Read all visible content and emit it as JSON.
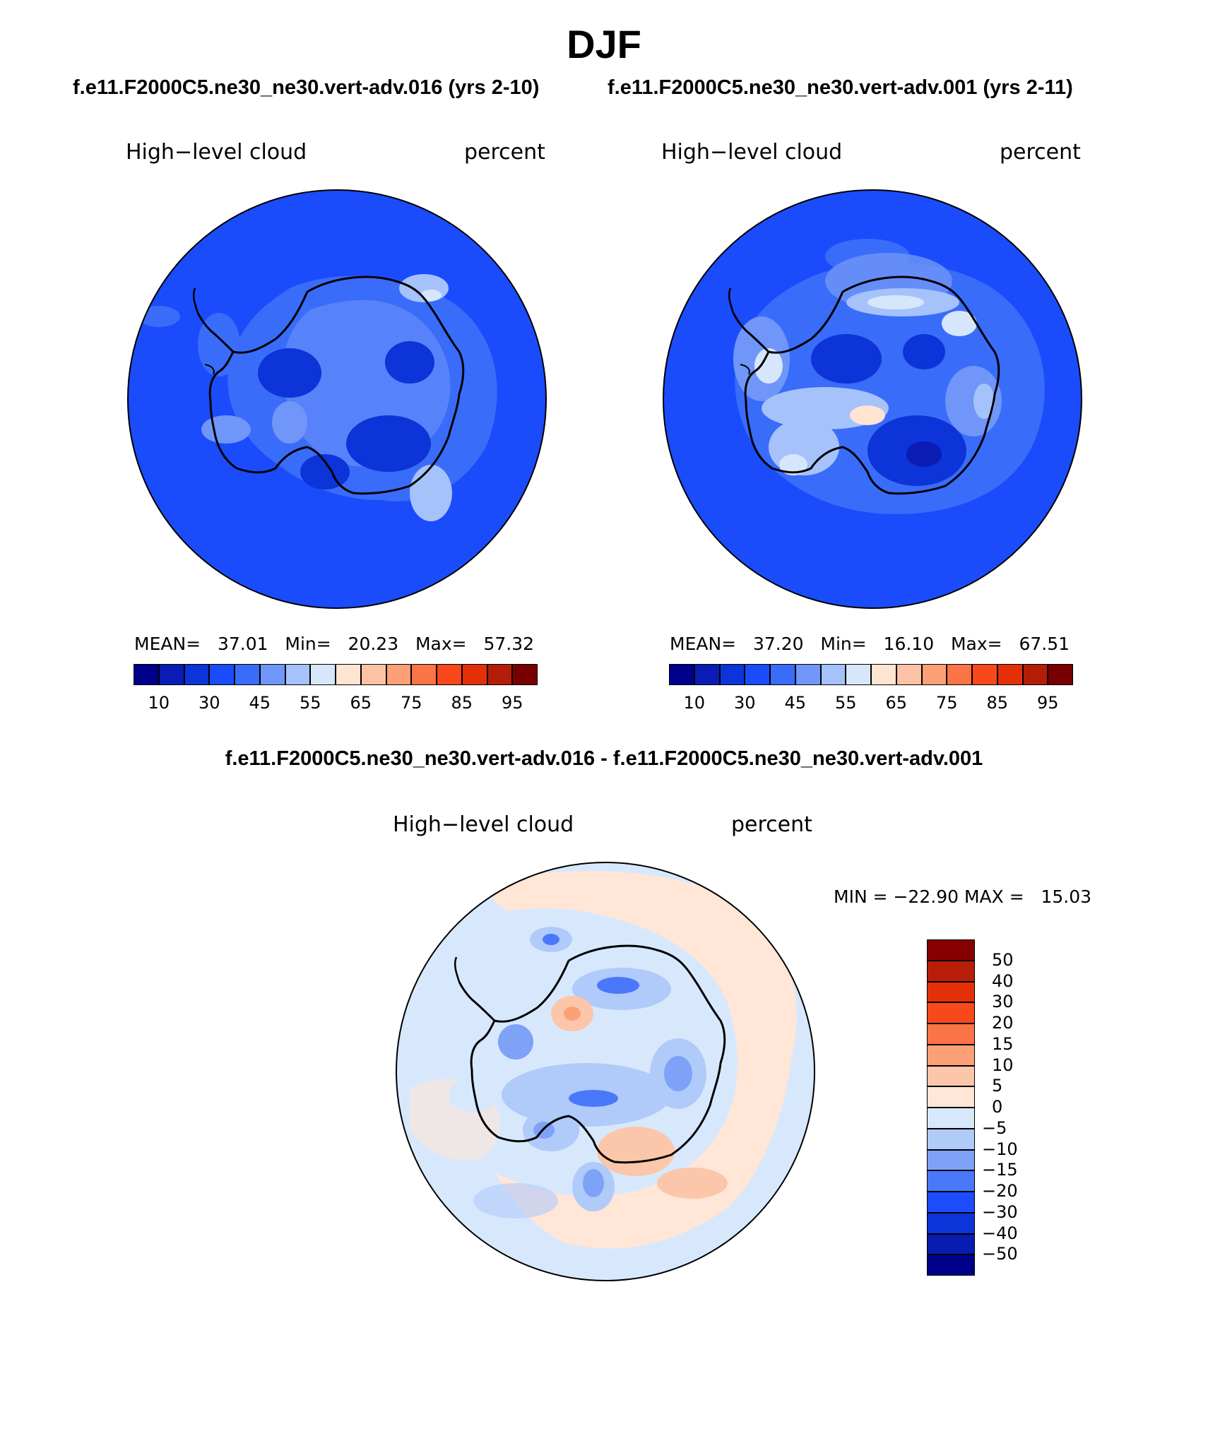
{
  "title": "DJF",
  "panels": [
    {
      "case": "f.e11.F2000C5.ne30_ne30.vert-adv.016 (yrs 2-10)",
      "variable": "High−level cloud",
      "units": "percent",
      "stats": {
        "mean_label": "MEAN=",
        "mean": "37.01",
        "min_label": "Min=",
        "min": "20.23",
        "max_label": "Max=",
        "max": "57.32"
      }
    },
    {
      "case": "f.e11.F2000C5.ne30_ne30.vert-adv.001 (yrs 2-11)",
      "variable": "High−level cloud",
      "units": "percent",
      "stats": {
        "mean_label": "MEAN=",
        "mean": "37.20",
        "min_label": "Min=",
        "min": "16.10",
        "max_label": "Max=",
        "max": "67.51"
      }
    }
  ],
  "abs_colorbar": {
    "colors": [
      "#00008a",
      "#0a1cb4",
      "#0d34d8",
      "#1a4cfc",
      "#3a6cfa",
      "#6f96f8",
      "#a6c2fa",
      "#d6e7fc",
      "#ffe4d2",
      "#fcc2a6",
      "#fca077",
      "#fa7447",
      "#f8481c",
      "#e43008",
      "#b41e08",
      "#780000"
    ],
    "ticks": [
      "10",
      "30",
      "45",
      "55",
      "65",
      "75",
      "85",
      "95"
    ]
  },
  "difference": {
    "title": "f.e11.F2000C5.ne30_ne30.vert-adv.016 - f.e11.F2000C5.ne30_ne30.vert-adv.001",
    "variable": "High−level cloud",
    "units": "percent",
    "minmax": "MIN = −22.90 MAX =   15.03",
    "colorbar": {
      "colors": [
        "#860000",
        "#b81e08",
        "#e43008",
        "#f8481c",
        "#fa7447",
        "#fca077",
        "#fcc6aa",
        "#ffe6d6",
        "#d8e8fc",
        "#b0cafa",
        "#7ea2f8",
        "#4a78fa",
        "#1c4cfc",
        "#0d34d8",
        "#081cb0",
        "#000088"
      ],
      "ticks": [
        "50",
        "40",
        "30",
        "20",
        "15",
        "10",
        "5",
        "0",
        "−5",
        "−10",
        "−15",
        "−20",
        "−30",
        "−40",
        "−50"
      ]
    }
  },
  "icons": {
    "coastline": "antarctica-coastline-icon"
  }
}
